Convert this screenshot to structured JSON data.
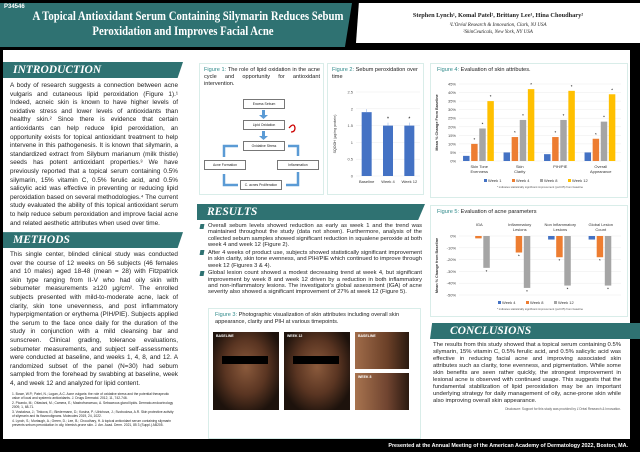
{
  "header": {
    "poster_id": "P34546",
    "title_line1": "A Topical Antioxidant Serum Containing Silymarin Reduces Sebum",
    "title_line2": "Peroxidation and Improves Facial Acne",
    "authors": "Stephen Lynch¹, Komal Patel², Brittany Lee¹, Hina Choudhary²",
    "affiliation1": "¹L'Oréal Research & Innovation, Clark, NJ USA",
    "affiliation2": "²SkinCeuticals, New York, NY USA"
  },
  "introduction": {
    "heading": "INTRODUCTION",
    "text": "A body of research suggests a connection between acne vulgaris and cutaneous lipid peroxidation (Figure 1).¹ Indeed, acneic skin is known to have higher levels of oxidative stress and lower levels of antioxidants than healthy skin.² Since there is evidence that certain antioxidants can help reduce lipid peroxidation, an opportunity exists for topical antioxidant treatment to help intervene in this pathogenesis. It is known that silymarin, a standardized extract from Silybum marianum (milk thistle) seeds has potent antioxidant properties.³ We have previously reported that a topical serum containing 0.5% silymarin, 15% vitamin C, 0.5% ferulic acid, and 0.5% salicylic acid was effective in preventing or reducing lipid peroxidation based on several methodologies.⁴ The current study evaluated the ability of this topical antioxidant serum to help reduce sebum peroxidation and improve facial acne and related aesthetic attributes when used over time."
  },
  "methods": {
    "heading": "METHODS",
    "text": "This single center, blinded clinical study was conducted over the course of 12 weeks on 56 subjects (46 females and 10 males) aged 18-48 (mean = 28) with Fitzpatrick skin type ranging from II-V who had oily skin with sebumeter measurements ≥120 µg/cm². The enrolled subjects presented with mild-to-moderate acne, lack of clarity, skin tone unevenness, and post inflammatory hyperpigmentation or erythema (PIH/PIE). Subjects applied the serum to the face once daily for the duration of the study in conjunction with a mild cleansing bar and sunscreen. Clinical grading, tolerance evaluations, sebumeter measurements, and subject self-assessments were conducted at baseline, and weeks 1, 4, 8, and 12. A randomized subset of the panel (N=30) had sebum sampled from the forehead by swabbing at baseline, week 4, and week 12 and analyzed for lipid content.",
    "references": [
      "1. Bowe, W.P.; Patel, N.; Logan, A.C. Acne vulgaris: the role of oxidative stress and the potential therapeutic value of local and systemic antioxidants. J. Drugs Dermatol. 2012, 11, 742-746.",
      "2. Picardo, M.; Ottaviani, M.; Camera, E.; Mastrofrancesco, A. Sebaceous gland lipids. Dermato-endocrinology 2009, 1, 68-71.",
      "3. Vostalova, J.; Tinkova, E.; Biedermann, D.; Kosina, P.; Ulrichova, J.; Svobodova, A.R. Skin protective activity of silymarin and its flavonolignans. Molecules 2019, 24, 1022.",
      "4. Lynch, S.; Murtaugh, A.; Green, D.; Lee, B.; Choudhary, H. A topical antioxidant serum containing silymarin prevents sebum peroxidation in oily, blemish-prone skin. J. Am. Acad. Derm. 2021, 85 3 (Suppl.) AB205."
    ]
  },
  "figure1": {
    "label": "Figure 1:",
    "caption": " The role of lipid oxidation in the acne cycle and opportunity for antioxidant intervention.",
    "nodes": [
      "Excess Sebum",
      "Lipid Oxidation",
      "Oxidative Stress",
      "Inflammation",
      "C. acnes Proliferation",
      "Acne Formation"
    ]
  },
  "figure2": {
    "label": "Figure 2:",
    "caption": " Sebum peroxidation over time"
  },
  "results": {
    "heading": "RESULTS",
    "bullets": [
      "Overall sebum levels showed reduction as early as week 1 and the trend was maintained throughout the study (data not shown). Furthermore, analysis of the collected sebum samples showed significant reduction in squalene peroxide at both week 4 and week 12 (Figure 2).",
      "After 4 weeks of product use, subjects showed statistically significant improvement in skin clarity, skin tone evenness, and PIH/PIE which continued to improve through week 12 (Figures 3 & 4).",
      "Global lesion count showed a modest decreasing trend at week 4, but significant improvement by week 8 and week 12 driven by a reduction in both inflammatory and non-inflammatory lesions. The investigator's global assessment (IGA) of acne severity also showed a significant improvement of 27% at week 12 (Figure 5)."
    ]
  },
  "figure3": {
    "label": "Figure 3:",
    "caption": " Photographic visualization of skin attributes including overall skin appearance, clarity and PIH at various timepoints.",
    "photos": [
      "BASELINE",
      "WEEK 12",
      "BASELINE",
      "WEEK 8"
    ]
  },
  "figure4": {
    "label": "Figure 4:",
    "caption": " Evaluation of skin attributes.",
    "footnote": "* indicates statistically significant improvement (p≤0.05) from baseline"
  },
  "figure5": {
    "label": "Figure 5:",
    "caption": " Evaluation of acne parameters",
    "footnote": "* indicates statistically significant improvement (p≤0.05) from baseline"
  },
  "conclusions": {
    "heading": "CONCLUSIONS",
    "text": "The results from this study showed that a topical serum containing 0.5% silymarin, 15% vitamin C, 0.5% ferulic acid, and 0.5% salicylic acid was effective in reducing facial acne and improving associated skin attributes such as clarity, tone evenness, and pigmentation. While some skin benefits are seen rather quickly, the strongest improvement in lesional acne is observed with continued usage. This suggests that the fundamental stabilization of lipid peroxidation may be an important underlying strategy for daily management of oily, acne-prone skin while also improving overall skin appearance.",
    "disclosure": "Disclosure: Support for this study was provided by L'Oréal Research & Innovation."
  },
  "footer": "Presented at the Annual Meeting of the American Academy of Dermatology 2022, Boston, MA.",
  "colors": {
    "teal": "#2f7272",
    "blue": "#4472c4",
    "orange": "#ed7d31",
    "gray": "#a5a5a5",
    "yellow": "#ffc000"
  },
  "chart_data": [
    {
      "type": "bar",
      "categories": [
        "Baseline",
        "Week 4",
        "Week 12"
      ],
      "values": [
        1.9,
        1.5,
        1.5
      ],
      "significant": [
        false,
        true,
        true
      ],
      "ylabel": "SQOOH (µg/mg protein)",
      "ylim": [
        0,
        2.5
      ],
      "yticks": [
        "0",
        "0.5",
        "1",
        "1.5",
        "2",
        "2.5"
      ]
    },
    {
      "type": "bar",
      "categories": [
        "Skin Tone Evenness",
        "Skin Clarity",
        "PIH/PIE",
        "Overall Appearance"
      ],
      "series": [
        {
          "name": "Week 1",
          "values": [
            3,
            5,
            4,
            5
          ]
        },
        {
          "name": "Week 4",
          "values": [
            10,
            14,
            14,
            13
          ]
        },
        {
          "name": "Week 8",
          "values": [
            19,
            24,
            24,
            23
          ]
        },
        {
          "name": "Week 12",
          "values": [
            35,
            42,
            41,
            39
          ]
        }
      ],
      "ylabel": "Mean % Change From Baseline",
      "ylim": [
        0,
        45
      ],
      "yticks": [
        "0%",
        "5%",
        "10%",
        "15%",
        "20%",
        "25%",
        "30%",
        "35%",
        "40%",
        "45%"
      ],
      "legend": "bottom"
    },
    {
      "type": "bar",
      "categories": [
        "IGA",
        "Inflammatory Lesions",
        "Non Inflammatory Lesions",
        "Global Lesion Count"
      ],
      "series": [
        {
          "name": "Week 4",
          "values": [
            null,
            null,
            -3,
            -3
          ]
        },
        {
          "name": "Week 8",
          "values": [
            -2,
            -14,
            -18,
            -18
          ]
        },
        {
          "name": "Week 12",
          "values": [
            -27,
            -44,
            -42,
            -42
          ]
        }
      ],
      "ylabel": "Mean % Change from Baseline",
      "ylim": [
        -50,
        0
      ],
      "yticks": [
        "0%",
        "-10%",
        "-20%",
        "-30%",
        "-40%",
        "-50%"
      ],
      "legend": "bottom"
    }
  ]
}
